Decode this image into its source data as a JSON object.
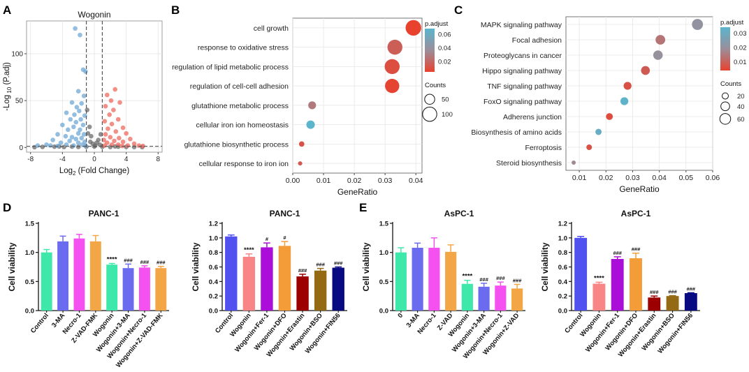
{
  "panels": {
    "A": {
      "letter": "A",
      "chart_data": {
        "type": "scatter",
        "title": "Wogonin",
        "xlabel_main": "Log",
        "xlabel_sub": "2",
        "xlabel_rest": " (Fold Change)",
        "ylabel_main": "-Log",
        "ylabel_sub": "10",
        "ylabel_rest": " (P.adj)",
        "xlim": [
          -8.5,
          8.5
        ],
        "ylim": [
          -5,
          135
        ],
        "xticks": [
          -8,
          -4,
          0,
          4,
          8
        ],
        "xtick_labels": [
          "-8",
          "-4",
          "0",
          "4",
          "8"
        ],
        "yticks": [
          0,
          50,
          100
        ],
        "ytick_labels": [
          "0",
          "50",
          "100"
        ],
        "fc_threshold": [
          -1,
          1
        ],
        "p_threshold": 1.3,
        "colors": {
          "down": "#6fa8d6",
          "up": "#ee6a5f",
          "ns": "#6b6b6b"
        },
        "down_points": [
          {
            "x": -2.4,
            "y": 127
          },
          {
            "x": -1.8,
            "y": 120
          },
          {
            "x": -1.4,
            "y": 83
          },
          {
            "x": -1.1,
            "y": 81
          },
          {
            "x": -2.0,
            "y": 60
          },
          {
            "x": -1.3,
            "y": 55
          },
          {
            "x": -2.8,
            "y": 48
          },
          {
            "x": -1.6,
            "y": 47
          },
          {
            "x": -2.2,
            "y": 43
          },
          {
            "x": -1.9,
            "y": 39
          },
          {
            "x": -3.5,
            "y": 37
          },
          {
            "x": -2.5,
            "y": 35
          },
          {
            "x": -1.2,
            "y": 34
          },
          {
            "x": -3.0,
            "y": 30
          },
          {
            "x": -1.7,
            "y": 30
          },
          {
            "x": -2.3,
            "y": 27
          },
          {
            "x": -4.0,
            "y": 24
          },
          {
            "x": -1.4,
            "y": 24
          },
          {
            "x": -2.6,
            "y": 22
          },
          {
            "x": -3.3,
            "y": 19
          },
          {
            "x": -1.8,
            "y": 19
          },
          {
            "x": -2.0,
            "y": 15
          },
          {
            "x": -4.6,
            "y": 14
          },
          {
            "x": -1.3,
            "y": 14
          },
          {
            "x": -3.6,
            "y": 12
          },
          {
            "x": -2.8,
            "y": 11
          },
          {
            "x": -1.6,
            "y": 10
          },
          {
            "x": -2.3,
            "y": 9
          },
          {
            "x": -5.2,
            "y": 8
          },
          {
            "x": -3.1,
            "y": 7
          },
          {
            "x": -1.2,
            "y": 6
          },
          {
            "x": -4.2,
            "y": 5
          },
          {
            "x": -2.0,
            "y": 5
          },
          {
            "x": -6.0,
            "y": 3
          },
          {
            "x": -3.5,
            "y": 3
          },
          {
            "x": -1.5,
            "y": 3
          },
          {
            "x": -7.1,
            "y": 2
          },
          {
            "x": -2.6,
            "y": 2
          },
          {
            "x": -5.5,
            "y": 2
          },
          {
            "x": -4.6,
            "y": 1.6
          },
          {
            "x": -1.1,
            "y": 1.6
          }
        ],
        "up_points": [
          {
            "x": 2.6,
            "y": 62
          },
          {
            "x": 1.6,
            "y": 56
          },
          {
            "x": 2.1,
            "y": 50
          },
          {
            "x": 3.2,
            "y": 48
          },
          {
            "x": 1.4,
            "y": 44
          },
          {
            "x": 2.4,
            "y": 40
          },
          {
            "x": 1.9,
            "y": 35
          },
          {
            "x": 3.0,
            "y": 30
          },
          {
            "x": 1.3,
            "y": 28
          },
          {
            "x": 2.2,
            "y": 25
          },
          {
            "x": 3.6,
            "y": 21
          },
          {
            "x": 1.7,
            "y": 20
          },
          {
            "x": 2.7,
            "y": 17
          },
          {
            "x": 4.0,
            "y": 15
          },
          {
            "x": 1.4,
            "y": 14
          },
          {
            "x": 2.0,
            "y": 11
          },
          {
            "x": 3.1,
            "y": 10
          },
          {
            "x": 4.5,
            "y": 9
          },
          {
            "x": 1.2,
            "y": 8
          },
          {
            "x": 2.5,
            "y": 7
          },
          {
            "x": 3.6,
            "y": 6
          },
          {
            "x": 1.6,
            "y": 5
          },
          {
            "x": 5.0,
            "y": 4
          },
          {
            "x": 2.2,
            "y": 3
          },
          {
            "x": 3.0,
            "y": 3
          },
          {
            "x": 4.2,
            "y": 2
          },
          {
            "x": 5.6,
            "y": 2
          },
          {
            "x": 1.3,
            "y": 2
          },
          {
            "x": 6.1,
            "y": 1.6
          },
          {
            "x": 3.5,
            "y": 1.6
          }
        ],
        "ns_points": [
          {
            "x": -0.9,
            "y": 40
          },
          {
            "x": -0.6,
            "y": 22
          },
          {
            "x": -0.4,
            "y": 12
          },
          {
            "x": -0.8,
            "y": 15
          },
          {
            "x": 0.5,
            "y": 8
          },
          {
            "x": 0.8,
            "y": 14
          },
          {
            "x": 0.3,
            "y": 5
          },
          {
            "x": -0.2,
            "y": 4
          },
          {
            "x": 0.1,
            "y": 2
          },
          {
            "x": -0.5,
            "y": 6
          },
          {
            "x": 0.7,
            "y": 3
          },
          {
            "x": -6.5,
            "y": 0.6
          },
          {
            "x": -5.0,
            "y": 0.8
          },
          {
            "x": -3.8,
            "y": 0.5
          },
          {
            "x": -2.8,
            "y": 0.9
          },
          {
            "x": -2.0,
            "y": 0.6
          },
          {
            "x": -1.0,
            "y": 0.8
          },
          {
            "x": 0.0,
            "y": 1.0
          },
          {
            "x": 1.0,
            "y": 0.7
          },
          {
            "x": 2.0,
            "y": 0.5
          },
          {
            "x": 3.0,
            "y": 0.8
          },
          {
            "x": 4.0,
            "y": 0.6
          },
          {
            "x": 5.0,
            "y": 0.5
          },
          {
            "x": 6.0,
            "y": 0.4
          },
          {
            "x": -7.5,
            "y": 0.3
          },
          {
            "x": -4.4,
            "y": 1.0
          },
          {
            "x": 2.6,
            "y": 1.1
          }
        ]
      }
    },
    "B": {
      "letter": "B",
      "chart_data": {
        "type": "scatter",
        "subtype": "dotplot",
        "xlabel": "GeneRatio",
        "xlim": [
          0.0,
          0.042
        ],
        "xticks": [
          0.0,
          0.01,
          0.02,
          0.03,
          0.04
        ],
        "xtick_labels": [
          "0.00",
          "0.01",
          "0.02",
          "0.03",
          "0.04"
        ],
        "terms": [
          {
            "label": "cell growth",
            "x": 0.0392,
            "count": 120,
            "padj": 0.005
          },
          {
            "label": "response to oxidative stress",
            "x": 0.0332,
            "count": 110,
            "padj": 0.017
          },
          {
            "label": "regulation of lipid metabolic process",
            "x": 0.0323,
            "count": 110,
            "padj": 0.01
          },
          {
            "label": "regulation of cell-cell adhesion",
            "x": 0.0323,
            "count": 100,
            "padj": 0.006
          },
          {
            "label": "glutathione metabolic process",
            "x": 0.0063,
            "count": 30,
            "padj": 0.028
          },
          {
            "label": "cellular iron ion homeostasis",
            "x": 0.0058,
            "count": 35,
            "padj": 0.068
          },
          {
            "label": "glutathione biosynthetic process",
            "x": 0.0029,
            "count": 14,
            "padj": 0.012
          },
          {
            "label": "cellular response to iron ion",
            "x": 0.0024,
            "count": 9,
            "padj": 0.015
          }
        ],
        "legend_padj": {
          "title": "p.adjust",
          "ticks": [
            0.06,
            0.04,
            0.02
          ],
          "tick_labels": [
            "0.06",
            "0.04",
            "0.02"
          ],
          "range": [
            0.005,
            0.068
          ]
        },
        "legend_counts": {
          "title": "Counts",
          "values": [
            50,
            100
          ],
          "labels": [
            "50",
            "100"
          ]
        },
        "gradient": [
          "#5ab5cd",
          "#9b8e9a",
          "#e8422f"
        ]
      }
    },
    "C": {
      "letter": "C",
      "chart_data": {
        "type": "scatter",
        "subtype": "dotplot",
        "xlabel": "GeneRatio",
        "xlim": [
          0.005,
          0.06
        ],
        "xticks": [
          0.01,
          0.02,
          0.03,
          0.04,
          0.05,
          0.06
        ],
        "xtick_labels": [
          "0.01",
          "0.02",
          "0.03",
          "0.04",
          "0.05",
          "0.06"
        ],
        "terms": [
          {
            "label": "MAPK signaling pathway",
            "x": 0.0543,
            "count": 62,
            "padj": 0.021
          },
          {
            "label": "Focal adhesion",
            "x": 0.0404,
            "count": 48,
            "padj": 0.014
          },
          {
            "label": "Proteoglycans in cancer",
            "x": 0.0395,
            "count": 46,
            "padj": 0.02
          },
          {
            "label": "Hippo signaling pathway",
            "x": 0.0348,
            "count": 40,
            "padj": 0.009
          },
          {
            "label": "TNF signaling pathway",
            "x": 0.0281,
            "count": 32,
            "padj": 0.007
          },
          {
            "label": "FoxO signaling pathway",
            "x": 0.0269,
            "count": 32,
            "padj": 0.033
          },
          {
            "label": "Adherens junction",
            "x": 0.0213,
            "count": 24,
            "padj": 0.006
          },
          {
            "label": "Biosynthesis of amino acids",
            "x": 0.0172,
            "count": 20,
            "padj": 0.031
          },
          {
            "label": "Ferroptosis",
            "x": 0.0137,
            "count": 16,
            "padj": 0.007
          },
          {
            "label": "Steroid biosynthesis",
            "x": 0.0079,
            "count": 9,
            "padj": 0.018
          }
        ],
        "legend_padj": {
          "title": "p.adjust",
          "ticks": [
            0.03,
            0.02,
            0.01
          ],
          "tick_labels": [
            "0.03",
            "0.02",
            "0.01"
          ],
          "range": [
            0.004,
            0.034
          ]
        },
        "legend_counts": {
          "title": "Counts",
          "values": [
            20,
            40,
            60
          ],
          "labels": [
            "20",
            "40",
            "60"
          ]
        },
        "gradient": [
          "#5ab5cd",
          "#9b8e9a",
          "#e8422f"
        ]
      }
    },
    "D": {
      "letter": "D",
      "charts": [
        {
          "type": "bar",
          "title": "PANC-1",
          "ylabel": "Cell viability",
          "ylim": [
            0,
            1.5
          ],
          "yticks": [
            0.0,
            0.5,
            1.0,
            1.5
          ],
          "ytick_labels": [
            "0.0",
            "0.5",
            "1.0",
            "1.5"
          ],
          "categories": [
            "Control",
            "3-MA",
            "Necro-1",
            "Z-VAD-FMK",
            "Wogonin",
            "Wogonin+3-MA",
            "Wogonin+Necro-1",
            "Wogonin+Z-VAD-FMK"
          ],
          "values": [
            1.0,
            1.19,
            1.24,
            1.19,
            0.79,
            0.73,
            0.74,
            0.73
          ],
          "errors": [
            0.05,
            0.09,
            0.07,
            0.1,
            0.02,
            0.07,
            0.03,
            0.03
          ],
          "annotations": [
            "",
            "",
            "",
            "",
            "****",
            "###",
            "###",
            "###"
          ],
          "colors": [
            "#3ee8ab",
            "#6b6bf0",
            "#f550f0",
            "#f3a646",
            "#3ee8ab",
            "#6b6bf0",
            "#f550f0",
            "#f3a646"
          ]
        },
        {
          "type": "bar",
          "title": "PANC-1",
          "ylabel": "Cell viability",
          "ylim": [
            0,
            1.2
          ],
          "yticks": [
            0.0,
            0.2,
            0.4,
            0.6,
            0.8,
            1.0,
            1.2
          ],
          "ytick_labels": [
            "0.0",
            "0.2",
            "0.4",
            "0.6",
            "0.8",
            "1.0",
            "1.2"
          ],
          "categories": [
            "Control",
            "Wogonin",
            "Wogonin+Fer-1",
            "Wogonin+DFO",
            "Wogonin+Erastin",
            "Wogonin+BSO",
            "Wogonin+FIN56"
          ],
          "values": [
            1.02,
            0.74,
            0.87,
            0.89,
            0.47,
            0.55,
            0.59
          ],
          "errors": [
            0.02,
            0.04,
            0.06,
            0.06,
            0.03,
            0.03,
            0.01
          ],
          "annotations": [
            "",
            "****",
            "#",
            "#",
            "###",
            "###",
            "###"
          ],
          "colors": [
            "#5151f0",
            "#f88686",
            "#ab0ed8",
            "#f39c38",
            "#9c0000",
            "#946a14",
            "#080a82"
          ]
        }
      ]
    },
    "E": {
      "letter": "E",
      "charts": [
        {
          "type": "bar",
          "title": "AsPC-1",
          "ylabel": "Cell viability",
          "ylim": [
            0,
            1.5
          ],
          "yticks": [
            0.0,
            0.5,
            1.0,
            1.5
          ],
          "ytick_labels": [
            "0.0",
            "0.5",
            "1.0",
            "1.5"
          ],
          "categories": [
            "0",
            "3-MA",
            "Necro-1",
            "Z-VAD",
            "Wogonin",
            "Wogonin+3-MA",
            "Wogonin+Necro-1",
            "Wogonin+Z-VAD"
          ],
          "values": [
            1.0,
            1.08,
            1.08,
            1.01,
            0.46,
            0.41,
            0.43,
            0.38
          ],
          "errors": [
            0.08,
            0.08,
            0.17,
            0.12,
            0.06,
            0.06,
            0.06,
            0.07
          ],
          "annotations": [
            "",
            "",
            "",
            "",
            "****",
            "###",
            "###",
            "###"
          ],
          "colors": [
            "#3ee8ab",
            "#6b6bf0",
            "#f550f0",
            "#f3a646",
            "#3ee8ab",
            "#6b6bf0",
            "#f550f0",
            "#f3a646"
          ]
        },
        {
          "type": "bar",
          "title": "AsPC-1",
          "ylabel": "Cell viability",
          "ylim": [
            0,
            1.2
          ],
          "yticks": [
            0.0,
            0.2,
            0.4,
            0.6,
            0.8,
            1.0,
            1.2
          ],
          "ytick_labels": [
            "0.0",
            "0.2",
            "0.4",
            "0.6",
            "0.8",
            "1.0",
            "1.2"
          ],
          "categories": [
            "Control",
            "Wogonin",
            "Wogonin+Fer-1",
            "Wogonin+DFO",
            "Wogonin+Erastin",
            "Wogonin+BSO",
            "Wogonin+FIN56"
          ],
          "values": [
            1.0,
            0.37,
            0.71,
            0.72,
            0.18,
            0.2,
            0.24
          ],
          "errors": [
            0.02,
            0.02,
            0.03,
            0.07,
            0.02,
            0.005,
            0.005
          ],
          "annotations": [
            "",
            "****",
            "###",
            "###",
            "###",
            "###",
            "###"
          ],
          "colors": [
            "#5151f0",
            "#f88686",
            "#ab0ed8",
            "#f39c38",
            "#9c0000",
            "#946a14",
            "#080a82"
          ]
        }
      ]
    }
  }
}
